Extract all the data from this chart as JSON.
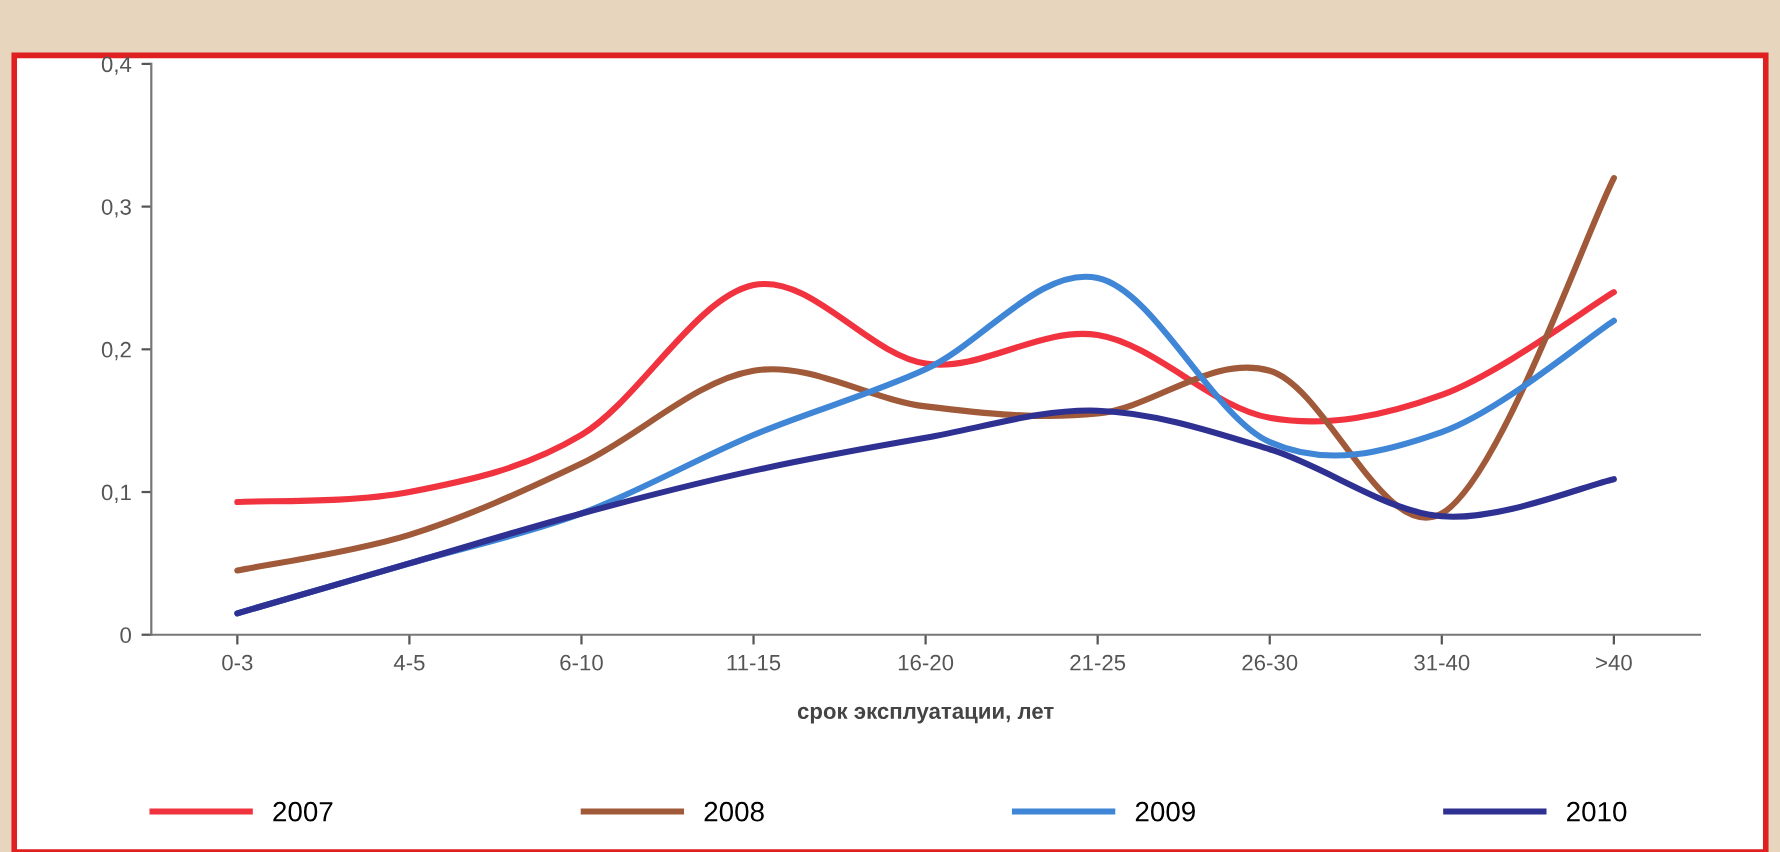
{
  "chart_data": {
    "type": "line",
    "xlabel": "срок эксплуатации, лет",
    "categories": [
      "0-3",
      "4-5",
      "6-10",
      "11-15",
      "16-20",
      "21-25",
      "26-30",
      "31-40",
      ">40"
    ],
    "series": [
      {
        "name": "2007",
        "color": "#f0333f",
        "values": [
          0.093,
          0.1,
          0.14,
          0.245,
          0.19,
          0.21,
          0.152,
          0.168,
          0.24
        ]
      },
      {
        "name": "2008",
        "color": "#a05a3a",
        "values": [
          0.045,
          0.07,
          0.12,
          0.185,
          0.16,
          0.155,
          0.185,
          0.085,
          0.32
        ]
      },
      {
        "name": "2009",
        "color": "#3f86d6",
        "values": [
          0.015,
          0.05,
          0.085,
          0.14,
          0.186,
          0.25,
          0.135,
          0.142,
          0.22
        ]
      },
      {
        "name": "2010",
        "color": "#2e3192",
        "values": [
          0.015,
          0.05,
          0.085,
          0.115,
          0.138,
          0.157,
          0.13,
          0.083,
          0.109
        ]
      }
    ],
    "ylim": [
      0,
      0.4
    ],
    "yticks": [
      {
        "value": 0,
        "label": "0"
      },
      {
        "value": 0.1,
        "label": "0,1"
      },
      {
        "value": 0.2,
        "label": "0,2"
      },
      {
        "value": 0.3,
        "label": "0,3"
      },
      {
        "value": 0.4,
        "label": "0,4"
      }
    ],
    "legend": "bottom",
    "grid": false,
    "marker": "none",
    "line_style": "solid"
  }
}
